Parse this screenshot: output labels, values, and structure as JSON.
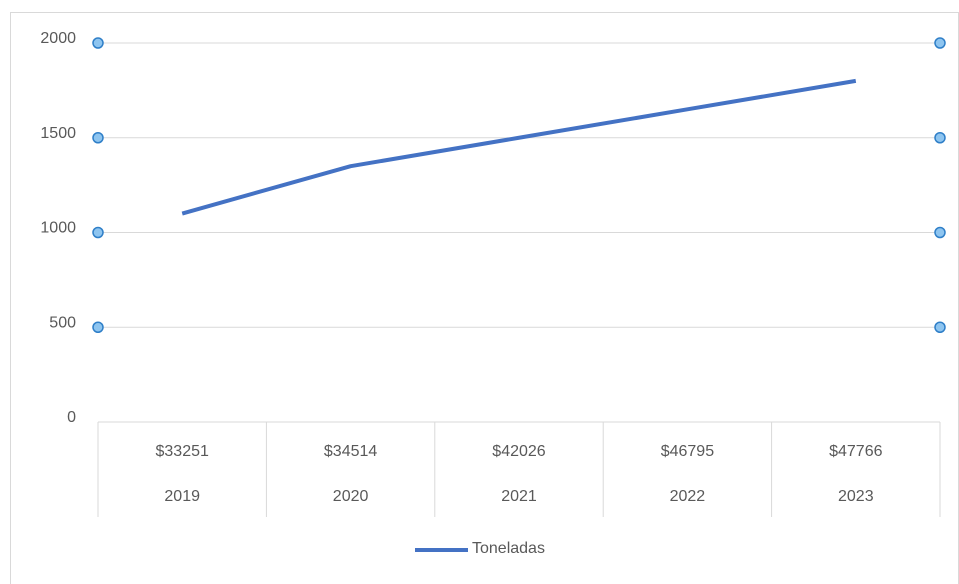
{
  "chart_data": {
    "type": "line",
    "categories": [
      [
        "$33251",
        "2019"
      ],
      [
        "$34514",
        "2020"
      ],
      [
        "$42026",
        "2021"
      ],
      [
        "$46795",
        "2022"
      ],
      [
        "$47766",
        "2023"
      ]
    ],
    "series": [
      {
        "name": "Toneladas",
        "color": "#4472c4",
        "values": [
          1100,
          1350,
          1500,
          1650,
          1800
        ]
      }
    ],
    "ylim": [
      0,
      2000
    ],
    "yticks": [
      0,
      500,
      1000,
      1500,
      2000
    ],
    "grid": true,
    "legend": "bottom"
  }
}
